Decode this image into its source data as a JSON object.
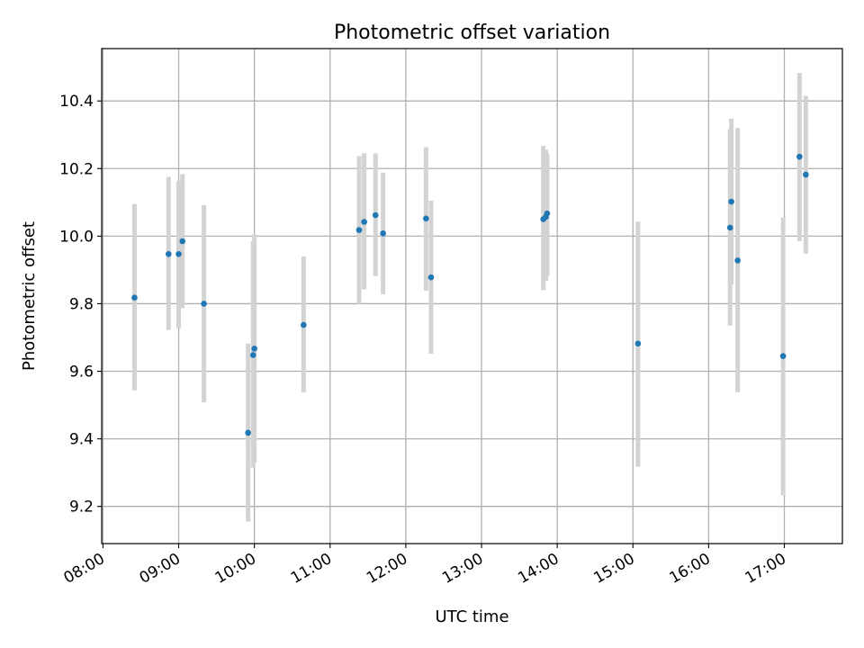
{
  "chart_data": {
    "type": "scatter",
    "title": "Photometric offset variation",
    "xlabel": "UTC time",
    "ylabel": "Photometric offset",
    "x_unit": "hours (UTC, 2-digit clock)",
    "xlim": [
      "07:59",
      "17:46"
    ],
    "ylim": [
      9.09,
      10.555
    ],
    "x_ticks": [
      "08:00",
      "09:00",
      "10:00",
      "11:00",
      "12:00",
      "13:00",
      "14:00",
      "15:00",
      "16:00",
      "17:00"
    ],
    "y_ticks": [
      9.2,
      9.4,
      9.6,
      9.8,
      10.0,
      10.2,
      10.4
    ],
    "y_tick_labels": [
      "9.2",
      "9.4",
      "9.6",
      "9.8",
      "10.0",
      "10.2",
      "10.4"
    ],
    "grid": true,
    "colors": {
      "marker": "#1f77b4",
      "errorbar": "#d3d3d3",
      "grid": "#b0b0b0"
    },
    "series": [
      {
        "points": [
          {
            "x": "08:25",
            "y": 9.818,
            "ylo": 9.543,
            "yhi": 10.095
          },
          {
            "x": "08:52",
            "y": 9.947,
            "ylo": 9.722,
            "yhi": 10.175
          },
          {
            "x": "09:00",
            "y": 9.947,
            "ylo": 9.727,
            "yhi": 10.163
          },
          {
            "x": "09:03",
            "y": 9.985,
            "ylo": 9.787,
            "yhi": 10.183
          },
          {
            "x": "09:20",
            "y": 9.8,
            "ylo": 9.508,
            "yhi": 10.092
          },
          {
            "x": "09:55",
            "y": 9.418,
            "ylo": 9.155,
            "yhi": 9.682
          },
          {
            "x": "09:59",
            "y": 9.648,
            "ylo": 9.315,
            "yhi": 9.985
          },
          {
            "x": "10:00",
            "y": 9.667,
            "ylo": 9.33,
            "yhi": 10.005
          },
          {
            "x": "10:39",
            "y": 9.737,
            "ylo": 9.538,
            "yhi": 9.94
          },
          {
            "x": "11:23",
            "y": 10.018,
            "ylo": 9.8,
            "yhi": 10.237
          },
          {
            "x": "11:27",
            "y": 10.042,
            "ylo": 9.842,
            "yhi": 10.245
          },
          {
            "x": "11:36",
            "y": 10.062,
            "ylo": 9.882,
            "yhi": 10.245
          },
          {
            "x": "11:42",
            "y": 10.008,
            "ylo": 9.828,
            "yhi": 10.188
          },
          {
            "x": "12:16",
            "y": 10.052,
            "ylo": 9.838,
            "yhi": 10.263
          },
          {
            "x": "12:20",
            "y": 9.878,
            "ylo": 9.652,
            "yhi": 10.105
          },
          {
            "x": "13:49",
            "y": 10.05,
            "ylo": 9.84,
            "yhi": 10.267
          },
          {
            "x": "13:51",
            "y": 10.057,
            "ylo": 9.867,
            "yhi": 10.255
          },
          {
            "x": "13:52",
            "y": 10.067,
            "ylo": 9.882,
            "yhi": 10.243
          },
          {
            "x": "15:04",
            "y": 9.682,
            "ylo": 9.318,
            "yhi": 10.043
          },
          {
            "x": "16:17",
            "y": 10.025,
            "ylo": 9.735,
            "yhi": 10.317
          },
          {
            "x": "16:18",
            "y": 10.102,
            "ylo": 9.857,
            "yhi": 10.348
          },
          {
            "x": "16:23",
            "y": 9.928,
            "ylo": 9.538,
            "yhi": 10.32
          },
          {
            "x": "16:59",
            "y": 9.645,
            "ylo": 9.233,
            "yhi": 10.055
          },
          {
            "x": "17:12",
            "y": 10.235,
            "ylo": 9.985,
            "yhi": 10.483
          },
          {
            "x": "17:17",
            "y": 10.182,
            "ylo": 9.948,
            "yhi": 10.415
          }
        ]
      }
    ]
  }
}
